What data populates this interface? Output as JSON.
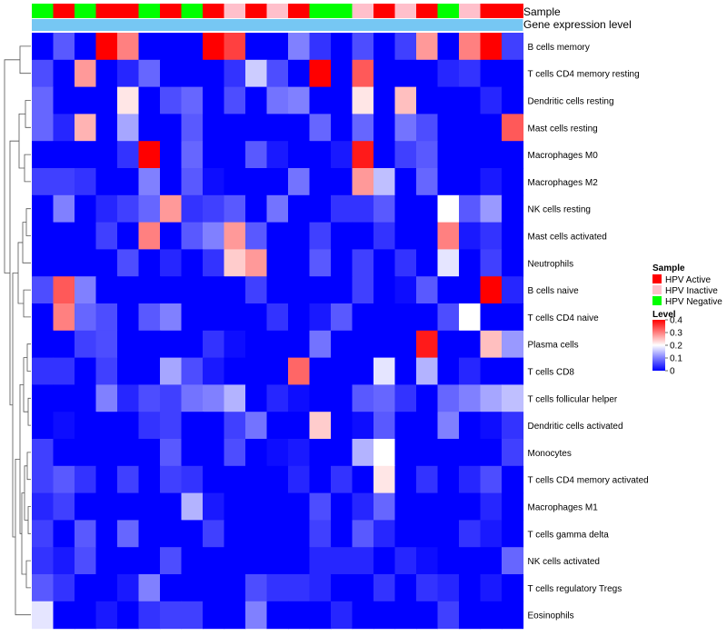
{
  "chart_data": {
    "type": "heatmap",
    "title": "",
    "annotation_rows": {
      "sample_label": "Sample",
      "gene_label": "Gene expression level"
    },
    "colors": {
      "hpv_active": "#ff0000",
      "hpv_inactive": "#ffc0cb",
      "hpv_negative": "#00ff00",
      "gene_row": "#76c7f3",
      "low": "#0000ff",
      "mid": "#ffffff",
      "high": "#ff0000"
    },
    "samples": [
      "Negative",
      "Active",
      "Negative",
      "Active",
      "Active",
      "Negative",
      "Active",
      "Negative",
      "Active",
      "Inactive",
      "Active",
      "Inactive",
      "Active",
      "Negative",
      "Negative",
      "Inactive",
      "Active",
      "Inactive",
      "Active",
      "Negative",
      "Inactive",
      "Active",
      "Active"
    ],
    "rows": [
      "B cells memory",
      "T cells CD4 memory resting",
      "Dendritic cells resting",
      "Mast cells resting",
      "Macrophages M0",
      "Macrophages M2",
      "NK cells resting",
      "Mast cells activated",
      "Neutrophils",
      "B cells naive",
      "T cells CD4 naive",
      "Plasma cells",
      "T cells CD8",
      "T cells follicular helper",
      "Dendritic cells activated",
      "Monocytes",
      "T cells CD4 memory activated",
      "Macrophages M1",
      "T cells gamma delta",
      "NK cells activated",
      "T cells regulatory  Tregs",
      "Eosinophils"
    ],
    "values": [
      [
        0,
        0.07,
        0,
        0.4,
        0.3,
        0,
        0,
        0,
        0.4,
        0.35,
        0,
        0,
        0.1,
        0.04,
        0,
        0.06,
        0,
        0.05,
        0.28,
        0,
        0.3,
        0.4,
        0.05
      ],
      [
        0.06,
        0,
        0.28,
        0,
        0.03,
        0.08,
        0,
        0,
        0,
        0.04,
        0.16,
        0.06,
        0,
        0.4,
        0,
        0.33,
        0,
        0,
        0,
        0.03,
        0.04,
        0,
        0
      ],
      [
        0.08,
        0,
        0,
        0,
        0.22,
        0,
        0.06,
        0.08,
        0,
        0.06,
        0,
        0.09,
        0.1,
        0,
        0,
        0.22,
        0,
        0.25,
        0,
        0,
        0,
        0.03,
        0
      ],
      [
        0.08,
        0.03,
        0.26,
        0,
        0.13,
        0,
        0,
        0.07,
        0,
        0,
        0,
        0,
        0,
        0.08,
        0,
        0.08,
        0,
        0.09,
        0.06,
        0,
        0,
        0,
        0.33
      ],
      [
        0,
        0,
        0,
        0,
        0.04,
        0.4,
        0,
        0.08,
        0,
        0,
        0.07,
        0.02,
        0,
        0,
        0.02,
        0.38,
        0,
        0.05,
        0.07,
        0,
        0,
        0,
        0
      ],
      [
        0.05,
        0.05,
        0.04,
        0,
        0,
        0.1,
        0,
        0.07,
        0.01,
        0,
        0,
        0,
        0.09,
        0,
        0,
        0.28,
        0.15,
        0,
        0.08,
        0,
        0,
        0.02,
        0
      ],
      [
        0,
        0.1,
        0,
        0.03,
        0.05,
        0.08,
        0.28,
        0.04,
        0.05,
        0.07,
        0,
        0.09,
        0,
        0,
        0.04,
        0.04,
        0.07,
        0,
        0,
        0.2,
        0.07,
        0.12,
        0
      ],
      [
        0,
        0,
        0,
        0.05,
        0,
        0.3,
        0,
        0.07,
        0.1,
        0.28,
        0.07,
        0,
        0,
        0.05,
        0,
        0,
        0.04,
        0,
        0,
        0.3,
        0.02,
        0.04,
        0
      ],
      [
        0,
        0,
        0,
        0,
        0.06,
        0,
        0.03,
        0,
        0.04,
        0.24,
        0.28,
        0,
        0,
        0.07,
        0,
        0.05,
        0,
        0.04,
        0,
        0.18,
        0,
        0.05,
        0
      ],
      [
        0.06,
        0.33,
        0.1,
        0,
        0,
        0,
        0,
        0,
        0,
        0,
        0.05,
        0,
        0,
        0,
        0,
        0.05,
        0,
        0.01,
        0.07,
        0,
        0,
        0.4,
        0.03
      ],
      [
        0,
        0.3,
        0.08,
        0.06,
        0,
        0.07,
        0.1,
        0,
        0,
        0,
        0,
        0.04,
        0,
        0.02,
        0.07,
        0,
        0,
        0,
        0,
        0.06,
        0.2,
        0,
        0
      ],
      [
        0,
        0,
        0.05,
        0.06,
        0,
        0,
        0,
        0,
        0.04,
        0.01,
        0,
        0,
        0,
        0.09,
        0,
        0,
        0,
        0,
        0.38,
        0,
        0,
        0.25,
        0.12
      ],
      [
        0.04,
        0.04,
        0,
        0.05,
        0,
        0,
        0.13,
        0.06,
        0.02,
        0,
        0,
        0,
        0.32,
        0,
        0,
        0,
        0.18,
        0,
        0.14,
        0,
        0.03,
        0,
        0
      ],
      [
        0,
        0,
        0,
        0.1,
        0.03,
        0.06,
        0.05,
        0.09,
        0.1,
        0.14,
        0,
        0.03,
        0.01,
        0,
        0,
        0.07,
        0.08,
        0.04,
        0,
        0.08,
        0.1,
        0.13,
        0.15
      ],
      [
        0,
        0.01,
        0,
        0,
        0,
        0.04,
        0.05,
        0,
        0,
        0.05,
        0.09,
        0,
        0,
        0.24,
        0,
        0.01,
        0.07,
        0,
        0,
        0.1,
        0,
        0.01,
        0.04
      ],
      [
        0.05,
        0,
        0,
        0,
        0,
        0,
        0.07,
        0,
        0,
        0.06,
        0,
        0.01,
        0.02,
        0,
        0,
        0.14,
        0.2,
        0,
        0,
        0,
        0,
        0,
        0.05
      ],
      [
        0.05,
        0.07,
        0.04,
        0,
        0.05,
        0,
        0.05,
        0.04,
        0,
        0,
        0,
        0,
        0.03,
        0,
        0.04,
        0,
        0.22,
        0,
        0.04,
        0,
        0.03,
        0.06,
        0
      ],
      [
        0.03,
        0.05,
        0,
        0,
        0,
        0,
        0,
        0.14,
        0.02,
        0,
        0,
        0,
        0,
        0.06,
        0,
        0.03,
        0.08,
        0,
        0,
        0,
        0,
        0.03,
        0
      ],
      [
        0.05,
        0,
        0.07,
        0,
        0.08,
        0,
        0,
        0,
        0.05,
        0,
        0,
        0,
        0,
        0.05,
        0,
        0.07,
        0.03,
        0,
        0,
        0,
        0.04,
        0.02,
        0
      ],
      [
        0.04,
        0.02,
        0.06,
        0,
        0,
        0,
        0.06,
        0,
        0,
        0,
        0,
        0,
        0,
        0.03,
        0.03,
        0.03,
        0,
        0.03,
        0.01,
        0,
        0,
        0,
        0.08
      ],
      [
        0.07,
        0.04,
        0,
        0,
        0.02,
        0.1,
        0,
        0,
        0,
        0,
        0.06,
        0.04,
        0.04,
        0.03,
        0,
        0,
        0.04,
        0,
        0.04,
        0.03,
        0,
        0.02,
        0
      ],
      [
        0.18,
        0,
        0,
        0.02,
        0,
        0.04,
        0.05,
        0.05,
        0,
        0,
        0.1,
        0,
        0,
        0,
        0.03,
        0,
        0,
        0,
        0,
        0.05,
        0,
        0,
        0
      ]
    ],
    "legend": {
      "sample_title": "Sample",
      "sample_entries": [
        "HPV Active",
        "HPV Inactive",
        "HPV Negative"
      ],
      "level_title": "Level",
      "level_ticks": [
        "0.4",
        "0.3",
        "0.2",
        "0.1",
        "0"
      ],
      "level_tick_values": [
        0.4,
        0.3,
        0.2,
        0.1,
        0
      ],
      "scale_min": 0,
      "scale_max": 0.4
    }
  }
}
